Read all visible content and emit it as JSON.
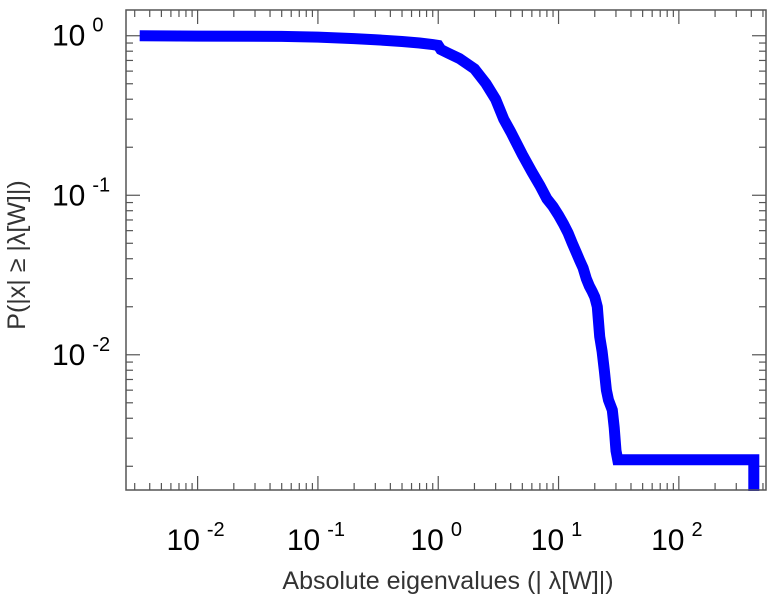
{
  "chart_data": {
    "type": "line",
    "title": "",
    "xlabel": "Absolute eigenvalues (|      λ[W]|)",
    "ylabel": "P(|x|  ≥ |λ[W]|)",
    "xscale": "log",
    "yscale": "log",
    "xlim": [
      0.00254,
      530
    ],
    "ylim": [
      0.00142,
      1.45
    ],
    "grid": false,
    "legend": "none",
    "x_ticks": [
      {
        "value": 0.01,
        "base": "10",
        "exp": "-2"
      },
      {
        "value": 0.1,
        "base": "10",
        "exp": "-1"
      },
      {
        "value": 1,
        "base": "10",
        "exp": "0"
      },
      {
        "value": 10,
        "base": "10",
        "exp": "1"
      },
      {
        "value": 100,
        "base": "10",
        "exp": "2"
      }
    ],
    "y_ticks": [
      {
        "value": 0.01,
        "base": "10",
        "exp": "-2"
      },
      {
        "value": 0.1,
        "base": "10",
        "exp": "-1"
      },
      {
        "value": 1,
        "base": "10",
        "exp": "0"
      }
    ],
    "series": [
      {
        "color": "#0000ff",
        "x": [
          0.0033,
          0.01,
          0.05,
          0.1,
          0.2,
          0.3,
          0.5,
          0.7,
          0.9,
          1.0,
          1.05,
          1.2,
          1.5,
          2.0,
          2.5,
          3.0,
          3.5,
          4.0,
          5.0,
          6.0,
          7.0,
          8.0,
          9.0,
          10.0,
          11.0,
          12.0,
          13.0,
          14.0,
          15.0,
          16.0,
          17.0,
          18.0,
          19.0,
          20.0,
          21.0,
          22.0,
          23.0,
          24.0,
          25.0,
          26.0,
          28.0,
          29.0,
          30.0,
          31.0,
          100.0,
          200.0,
          420.0,
          420.0
        ],
        "y": [
          1.0,
          0.995,
          0.99,
          0.98,
          0.96,
          0.945,
          0.92,
          0.9,
          0.88,
          0.87,
          0.82,
          0.78,
          0.72,
          0.62,
          0.5,
          0.4,
          0.3,
          0.25,
          0.18,
          0.14,
          0.115,
          0.095,
          0.085,
          0.075,
          0.066,
          0.058,
          0.05,
          0.044,
          0.039,
          0.035,
          0.03,
          0.027,
          0.025,
          0.023,
          0.02,
          0.013,
          0.0105,
          0.008,
          0.006,
          0.0052,
          0.0045,
          0.0035,
          0.0025,
          0.0022,
          0.0022,
          0.0022,
          0.0022,
          0.0014
        ]
      }
    ]
  }
}
